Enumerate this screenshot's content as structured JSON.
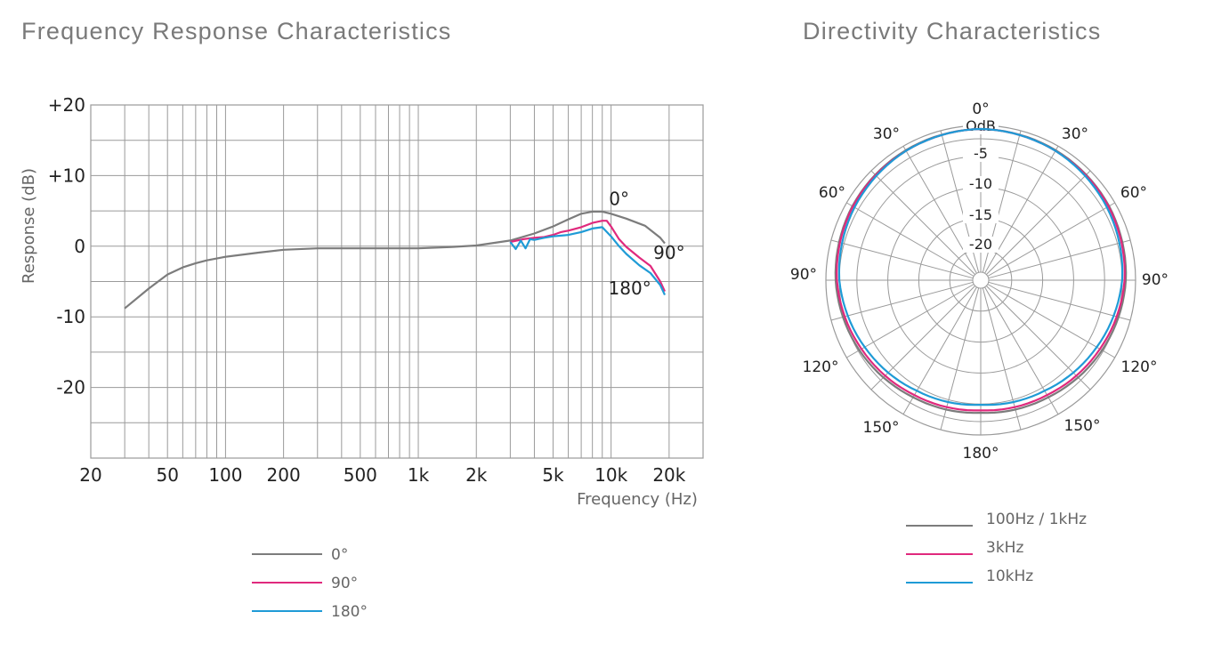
{
  "frequency_title": "Frequency Response Characteristics",
  "directivity_title": "Directivity Characteristics",
  "colors": {
    "gray": "#7c7c7c",
    "magenta": "#e0297d",
    "blue": "#1f9bd6",
    "grid": "#9a9a9a"
  },
  "chart_data": [
    {
      "type": "line",
      "title": "Frequency Response Characteristics",
      "xlabel": "Frequency (Hz)",
      "ylabel": "Response (dB)",
      "x_scale": "log",
      "xlim": [
        20,
        30000
      ],
      "ylim": [
        -30,
        20
      ],
      "x_ticks": [
        20,
        50,
        100,
        200,
        500,
        1000,
        2000,
        5000,
        10000,
        20000
      ],
      "x_tick_labels": [
        "20",
        "50",
        "100",
        "200",
        "500",
        "1k",
        "2k",
        "5k",
        "10k",
        "20k"
      ],
      "y_ticks": [
        20,
        10,
        0,
        -10,
        -20
      ],
      "y_tick_labels": [
        "+20",
        "+10",
        "0",
        "-10",
        "-20"
      ],
      "grid": true,
      "curve_labels": [
        {
          "text": "0°",
          "x": 11000,
          "y": 5.8
        },
        {
          "text": "90°",
          "x": 20000,
          "y": -1.8
        },
        {
          "text": "180°",
          "x": 12500,
          "y": -6.8
        }
      ],
      "series": [
        {
          "name": "0°",
          "color": "#7c7c7c",
          "x": [
            30,
            40,
            50,
            60,
            70,
            80,
            100,
            150,
            200,
            300,
            500,
            700,
            1000,
            1500,
            2000,
            3000,
            4000,
            5000,
            6000,
            7000,
            8000,
            9000,
            10000,
            12000,
            15000,
            18000,
            19000
          ],
          "y": [
            -8.8,
            -6.0,
            -4.0,
            -3.0,
            -2.4,
            -2.0,
            -1.5,
            -0.9,
            -0.5,
            -0.3,
            -0.3,
            -0.3,
            -0.3,
            -0.1,
            0.1,
            0.8,
            1.8,
            2.8,
            3.8,
            4.6,
            4.9,
            4.9,
            4.6,
            3.9,
            2.9,
            1.2,
            0.4
          ]
        },
        {
          "name": "90°",
          "color": "#e0297d",
          "x": [
            3000,
            3500,
            4000,
            4500,
            5000,
            5500,
            6000,
            7000,
            8000,
            9000,
            9500,
            10000,
            11000,
            12000,
            14000,
            16000,
            18000,
            19000
          ],
          "y": [
            0.6,
            1.0,
            1.2,
            1.3,
            1.6,
            2.0,
            2.2,
            2.7,
            3.3,
            3.6,
            3.6,
            2.8,
            1.0,
            -0.1,
            -1.6,
            -2.8,
            -5.0,
            -6.4
          ]
        },
        {
          "name": "180°",
          "color": "#1f9bd6",
          "x": [
            3000,
            3200,
            3400,
            3600,
            3800,
            4000,
            4500,
            5000,
            6000,
            7000,
            8000,
            9000,
            10000,
            11000,
            12000,
            14000,
            16000,
            18000,
            19000
          ],
          "y": [
            0.6,
            -0.4,
            0.8,
            -0.3,
            1.0,
            0.9,
            1.2,
            1.4,
            1.6,
            2.0,
            2.5,
            2.7,
            1.4,
            0.0,
            -1.1,
            -2.7,
            -3.8,
            -5.5,
            -6.9
          ]
        }
      ]
    },
    {
      "type": "polar",
      "title": "Directivity Characteristics",
      "r_ticks": [
        0,
        -5,
        -10,
        -15,
        -20
      ],
      "r_tick_labels": [
        "OdB",
        "-5",
        "-10",
        "-15",
        "-20"
      ],
      "rlim": [
        -25,
        0
      ],
      "angle_labels": [
        "0°",
        "30°",
        "30°",
        "60°",
        "60°",
        "90°",
        "90°",
        "120°",
        "120°",
        "150°",
        "150°",
        "180°"
      ],
      "grid": true,
      "legend_position": "bottom",
      "series": [
        {
          "name": "100Hz / 1kHz",
          "color": "#7c7c7c",
          "angles": [
            0,
            30,
            60,
            90,
            120,
            150,
            180
          ],
          "values": [
            0,
            -0.2,
            -0.5,
            -1.0,
            -1.8,
            -2.6,
            -3.0
          ]
        },
        {
          "name": "3kHz",
          "color": "#e0297d",
          "angles": [
            0,
            30,
            60,
            90,
            120,
            150,
            180
          ],
          "values": [
            0,
            -0.3,
            -0.6,
            -1.2,
            -2.2,
            -3.0,
            -3.4
          ]
        },
        {
          "name": "10kHz",
          "color": "#1f9bd6",
          "angles": [
            0,
            30,
            60,
            90,
            120,
            150,
            180
          ],
          "values": [
            0,
            -0.3,
            -0.9,
            -1.6,
            -2.8,
            -3.8,
            -4.3
          ]
        }
      ]
    }
  ]
}
